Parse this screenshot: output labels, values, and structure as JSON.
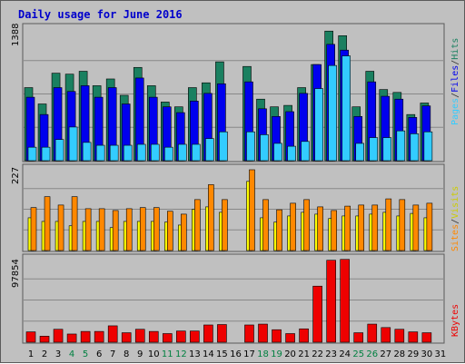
{
  "chart_data": {
    "type": "bar",
    "title": "Daily usage for June 2016",
    "days": [
      "1",
      "2",
      "3",
      "4",
      "5",
      "6",
      "7",
      "8",
      "9",
      "10",
      "11",
      "12",
      "13",
      "14",
      "15",
      "16",
      "17",
      "18",
      "19",
      "20",
      "21",
      "22",
      "23",
      "24",
      "25",
      "26",
      "27",
      "28",
      "29",
      "30",
      "31"
    ],
    "weekend_days": [
      "4",
      "5",
      "11",
      "12",
      "18",
      "19",
      "25",
      "26"
    ],
    "missing_days": [
      "16"
    ],
    "panels": {
      "hits_files_pages": {
        "ymax_label": "1388",
        "ymax": 1388,
        "series": [
          {
            "name": "Hits",
            "color": "#1a8060",
            "values": [
              760,
              590,
              910,
              900,
              930,
              780,
              850,
              680,
              970,
              780,
              610,
              560,
              760,
              810,
              1028,
              0,
              980,
              640,
              560,
              575,
              760,
              1000,
              1348,
              1300,
              560,
              930,
              740,
              710,
              480,
              600,
              0
            ]
          },
          {
            "name": "Files",
            "color": "#0000ee",
            "values": [
              660,
              480,
              760,
              720,
              780,
              660,
              760,
              590,
              860,
              660,
              560,
              500,
              620,
              700,
              800,
              0,
              820,
              540,
              460,
              510,
              700,
              1000,
              1210,
              1150,
              460,
              820,
              670,
              640,
              450,
              570,
              0
            ]
          },
          {
            "name": "Pages",
            "color": "#33ccff",
            "values": [
              140,
              140,
              220,
              350,
              190,
              160,
              160,
              160,
              170,
              170,
              140,
              170,
              170,
              230,
              300,
              0,
              300,
              270,
              180,
              150,
              200,
              750,
              990,
              1090,
              180,
              240,
              240,
              310,
              280,
              300,
              0
            ]
          }
        ]
      },
      "visits_sites": {
        "ymax_label": "227",
        "ymax": 227,
        "series": [
          {
            "name": "Sites",
            "color": "#ffff00",
            "values": [
              90,
              80,
              80,
              68,
              80,
              80,
              63,
              80,
              80,
              80,
              78,
              70,
              113,
              120,
              105,
              0,
              190,
              90,
              78,
              95,
              105,
              100,
              88,
              95,
              95,
              100,
              105,
              95,
              102,
              90,
              0
            ]
          },
          {
            "name": "Visits",
            "color": "#ff8800",
            "values": [
              118,
              148,
              125,
              148,
              115,
              115,
              110,
              115,
              118,
              118,
              108,
              100,
              140,
              181,
              140,
              0,
              222,
              140,
              112,
              130,
              140,
              120,
              110,
              122,
              125,
              125,
              142,
              140,
              125,
              130,
              0
            ]
          }
        ]
      },
      "kbytes": {
        "ymax_label": "97854",
        "ymax": 97854,
        "series": [
          {
            "name": "KBytes",
            "color": "#ee0000",
            "values": [
              12000,
              7000,
              15000,
              9500,
              12500,
              12500,
              19000,
              11000,
              15000,
              12500,
              10000,
              13000,
              13000,
              20000,
              20500,
              0,
              20000,
              21000,
              14500,
              10000,
              15500,
              65000,
              95000,
              96000,
              11000,
              21000,
              17000,
              15000,
              12000,
              11000,
              0
            ]
          }
        ]
      }
    }
  },
  "labels": {
    "pages": "Pages",
    "files": "Files",
    "hits": "Hits",
    "sites": "Sites",
    "visits": "Visits",
    "kbytes": "KBytes",
    "slash": "/"
  },
  "colors": {
    "background": "#c0c0c0",
    "title": "#0000cc",
    "weekday_label": "#000000",
    "weekend_label": "#008040",
    "grid": "#888888"
  }
}
